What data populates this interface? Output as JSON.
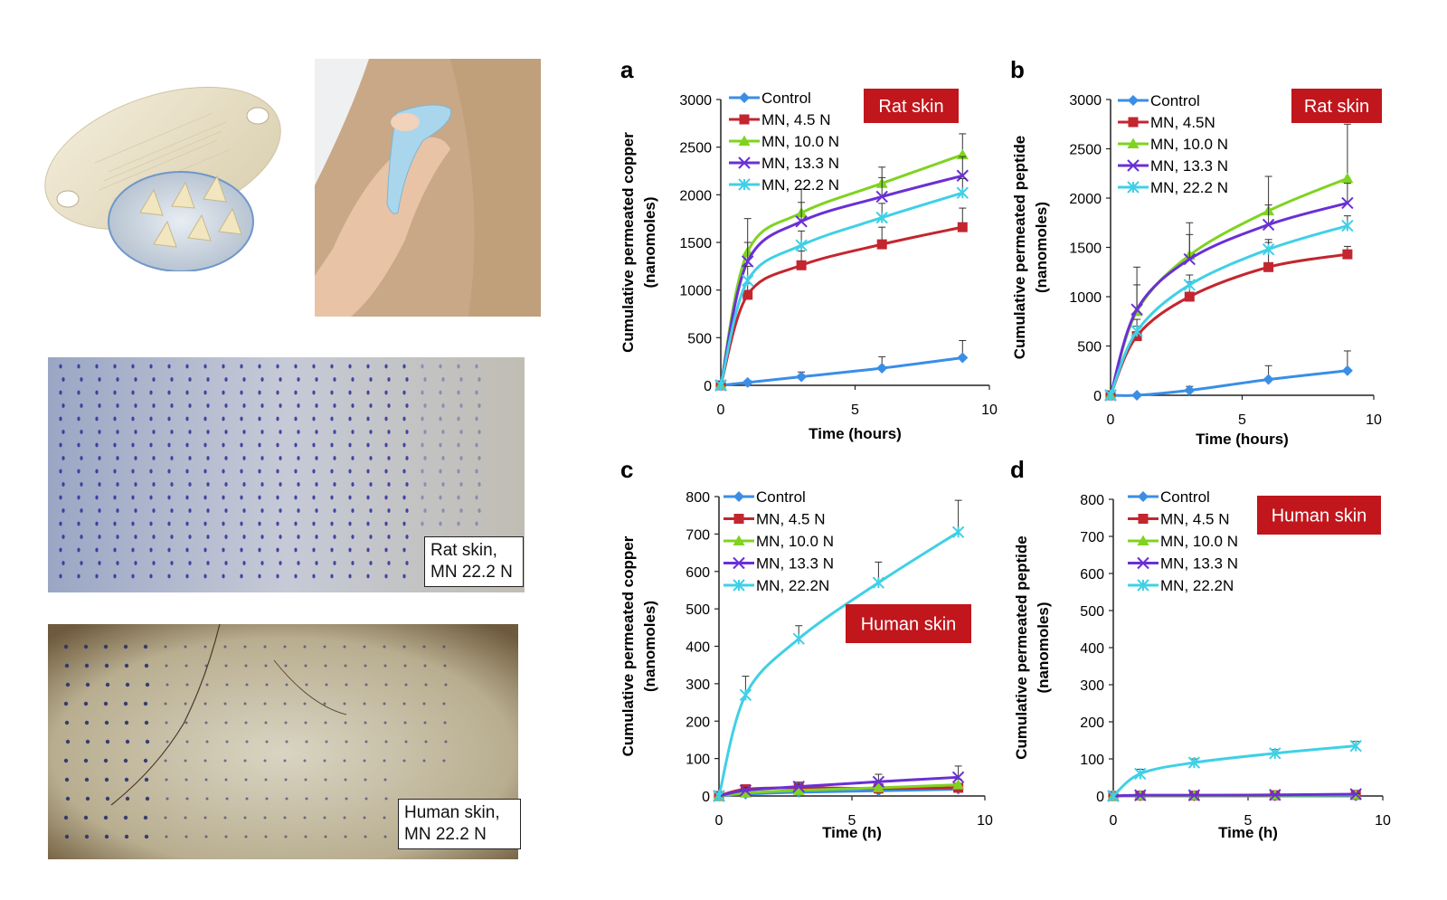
{
  "captions": {
    "rat_photo": "Rat skin,\nMN 22.2 N",
    "human_photo": "Human skin,\nMN 22.2 N"
  },
  "colors": {
    "Control": "#3a8ee6",
    "MN, 4.5 N": "#c3262f",
    "MN, 10.0 N": "#7fd320",
    "MN, 13.3 N": "#6a2fd6",
    "MN, 22.2 N": "#3fd0e6",
    "badge": "#c0161c"
  },
  "chart_data": [
    {
      "panel": "a",
      "type": "line",
      "badge": "Rat skin",
      "xlabel": "Time (hours)",
      "ylabel": [
        "Cumulative permeated copper",
        "(nanomoles)"
      ],
      "xlim": [
        0,
        10
      ],
      "ylim": [
        0,
        3000
      ],
      "xticks": [
        0,
        5,
        10
      ],
      "yticks": [
        0,
        500,
        1000,
        1500,
        2000,
        2500,
        3000
      ],
      "x": [
        0,
        1,
        3,
        6,
        9
      ],
      "legend_labels": [
        "Control",
        "MN, 4.5 N",
        "MN, 10.0 N",
        "MN, 13.3 N",
        "MN, 22.2 N"
      ],
      "series": [
        {
          "name": "Control",
          "values": [
            0,
            30,
            90,
            180,
            290
          ],
          "err": [
            0,
            20,
            50,
            120,
            180
          ]
        },
        {
          "name": "MN, 4.5 N",
          "values": [
            0,
            950,
            1260,
            1480,
            1660
          ],
          "err": [
            0,
            120,
            150,
            180,
            200
          ]
        },
        {
          "name": "MN, 10.0 N",
          "values": [
            0,
            1400,
            1810,
            2120,
            2420
          ],
          "err": [
            0,
            350,
            250,
            170,
            220
          ]
        },
        {
          "name": "MN, 13.3 N",
          "values": [
            0,
            1300,
            1720,
            1980,
            2200
          ],
          "err": [
            0,
            200,
            200,
            200,
            200
          ]
        },
        {
          "name": "MN, 22.2 N",
          "values": [
            0,
            1100,
            1470,
            1760,
            2020
          ],
          "err": [
            0,
            150,
            150,
            150,
            150
          ]
        }
      ]
    },
    {
      "panel": "b",
      "type": "line",
      "badge": "Rat skin",
      "xlabel": "Time (hours)",
      "ylabel": [
        "Cumulative permeated peptide",
        "(nanomoles)"
      ],
      "xlim": [
        0,
        10
      ],
      "ylim": [
        0,
        3000
      ],
      "xticks": [
        0,
        5,
        10
      ],
      "yticks": [
        0,
        500,
        1000,
        1500,
        2000,
        2500,
        3000
      ],
      "x": [
        0,
        1,
        3,
        6,
        9
      ],
      "legend_labels": [
        "Control",
        "MN, 4.5N",
        "MN, 10.0 N",
        "MN, 13.3 N",
        "MN, 22.2 N"
      ],
      "series": [
        {
          "name": "Control",
          "values": [
            0,
            0,
            50,
            160,
            250
          ],
          "err": [
            0,
            10,
            40,
            140,
            200
          ]
        },
        {
          "name": "MN, 4.5 N",
          "values": [
            0,
            600,
            1000,
            1300,
            1430
          ],
          "err": [
            0,
            100,
            150,
            250,
            80
          ]
        },
        {
          "name": "MN, 10.0 N",
          "values": [
            0,
            850,
            1420,
            1870,
            2200
          ],
          "err": [
            0,
            450,
            330,
            350,
            550
          ]
        },
        {
          "name": "MN, 13.3 N",
          "values": [
            0,
            870,
            1380,
            1730,
            1950
          ],
          "err": [
            0,
            250,
            250,
            200,
            200
          ]
        },
        {
          "name": "MN, 22.2 N",
          "values": [
            0,
            650,
            1120,
            1480,
            1720
          ],
          "err": [
            0,
            120,
            100,
            100,
            100
          ]
        }
      ]
    },
    {
      "panel": "c",
      "type": "line",
      "badge": "Human skin",
      "xlabel": "Time (h)",
      "ylabel": [
        "Cumulative permeated copper",
        "(nanomoles)"
      ],
      "xlim": [
        0,
        10
      ],
      "ylim": [
        0,
        800
      ],
      "xticks": [
        0,
        5,
        10
      ],
      "yticks": [
        0,
        100,
        200,
        300,
        400,
        500,
        600,
        700,
        800
      ],
      "x": [
        0,
        1,
        3,
        6,
        9
      ],
      "legend_labels": [
        "Control",
        "MN, 4.5 N",
        "MN, 10.0 N",
        "MN, 13.3 N",
        "MN, 22.2N"
      ],
      "series": [
        {
          "name": "Control",
          "values": [
            0,
            5,
            10,
            14,
            18
          ],
          "err": [
            0,
            3,
            4,
            5,
            6
          ]
        },
        {
          "name": "MN, 4.5 N",
          "values": [
            0,
            18,
            22,
            20,
            22
          ],
          "err": [
            0,
            5,
            6,
            6,
            8
          ]
        },
        {
          "name": "MN, 10.0 N",
          "values": [
            0,
            8,
            15,
            22,
            30
          ],
          "err": [
            0,
            5,
            8,
            10,
            15
          ]
        },
        {
          "name": "MN, 13.3 N",
          "values": [
            0,
            15,
            25,
            38,
            50
          ],
          "err": [
            0,
            8,
            12,
            20,
            30
          ]
        },
        {
          "name": "MN, 22.2 N",
          "values": [
            0,
            270,
            420,
            570,
            705
          ],
          "err": [
            0,
            50,
            35,
            55,
            85
          ]
        }
      ]
    },
    {
      "panel": "d",
      "type": "line",
      "badge": "Human skin",
      "xlabel": "Time (h)",
      "ylabel": [
        "Cumulative permeated peptide",
        "(nanomoles)"
      ],
      "xlim": [
        0,
        10
      ],
      "ylim": [
        0,
        800
      ],
      "xticks": [
        0,
        5,
        10
      ],
      "yticks": [
        0,
        100,
        200,
        300,
        400,
        500,
        600,
        700,
        800
      ],
      "x": [
        0,
        1,
        3,
        6,
        9
      ],
      "legend_labels": [
        "Control",
        "MN, 4.5 N",
        "MN, 10.0 N",
        "MN, 13.3 N",
        "MN, 22.2N"
      ],
      "series": [
        {
          "name": "Control",
          "values": [
            0,
            0,
            0,
            0,
            0
          ],
          "err": [
            0,
            0,
            0,
            0,
            0
          ]
        },
        {
          "name": "MN, 4.5 N",
          "values": [
            0,
            1,
            1,
            2,
            3
          ],
          "err": [
            0,
            1,
            1,
            1,
            1
          ]
        },
        {
          "name": "MN, 10.0 N",
          "values": [
            0,
            1,
            1,
            2,
            3
          ],
          "err": [
            0,
            1,
            1,
            1,
            1
          ]
        },
        {
          "name": "MN, 13.3 N",
          "values": [
            0,
            2,
            2,
            3,
            5
          ],
          "err": [
            0,
            1,
            1,
            1,
            1
          ]
        },
        {
          "name": "MN, 22.2 N",
          "values": [
            0,
            60,
            90,
            115,
            135
          ],
          "err": [
            0,
            12,
            10,
            10,
            12
          ]
        }
      ]
    }
  ]
}
